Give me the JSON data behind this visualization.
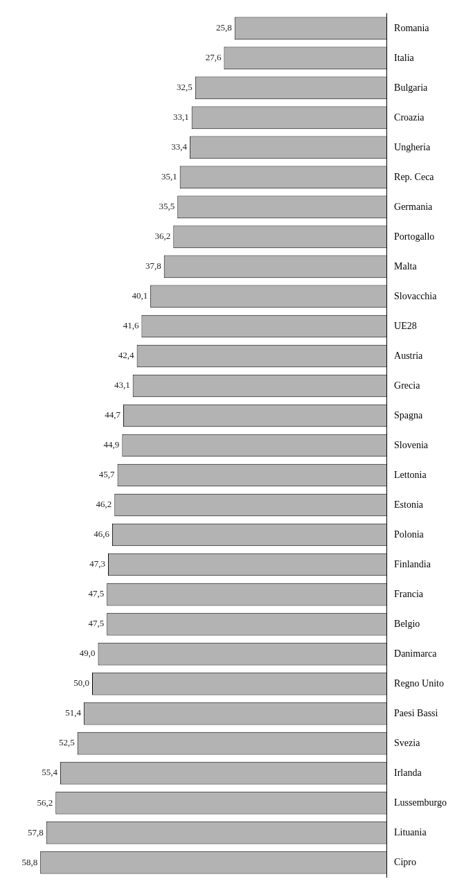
{
  "chart_data": {
    "type": "bar",
    "orientation": "horizontal",
    "color": "#b3b3b3",
    "tick_labels": "y",
    "categories": [
      "Romania",
      "Italia",
      "Bulgaria",
      "Croazia",
      "Ungheria",
      "Rep. Ceca",
      "Germania",
      "Portogallo",
      "Malta",
      "Slovacchia",
      "UE28",
      "Austria",
      "Grecia",
      "Spagna",
      "Slovenia",
      "Lettonia",
      "Estonia",
      "Polonia",
      "Finlandia",
      "Francia",
      "Belgio",
      "Danimarca",
      "Regno Unito",
      "Paesi Bassi",
      "Svezia",
      "Irlanda",
      "Lussemburgo",
      "Lituania",
      "Cipro"
    ],
    "values": [
      25.8,
      27.6,
      32.5,
      33.1,
      33.4,
      35.1,
      35.5,
      36.2,
      37.8,
      40.1,
      41.6,
      42.4,
      43.1,
      44.7,
      44.9,
      45.7,
      46.2,
      46.6,
      47.3,
      47.5,
      47.5,
      49.0,
      50.0,
      51.4,
      52.5,
      55.4,
      56.2,
      57.8,
      58.8
    ],
    "value_labels": [
      "25,8",
      "27,6",
      "32,5",
      "33,1",
      "33,4",
      "35,1",
      "35,5",
      "36,2",
      "37,8",
      "40,1",
      "41,6",
      "42,4",
      "43,1",
      "44,7",
      "44,9",
      "45,7",
      "46,2",
      "46,6",
      "47,3",
      "47,5",
      "47,5",
      "49,0",
      "50,0",
      "51,4",
      "52,5",
      "55,4",
      "56,2",
      "57,8",
      "58,8"
    ]
  }
}
